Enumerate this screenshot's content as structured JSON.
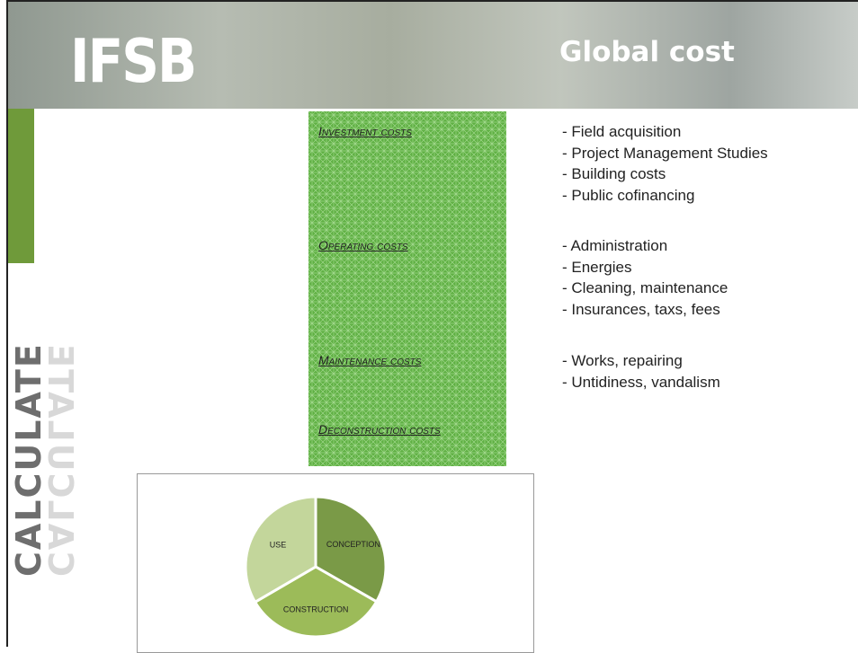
{
  "header": {
    "logo": "IFSB",
    "title": "Global cost"
  },
  "side_label": "CALCULATE",
  "costs": [
    {
      "label": "Investment costs",
      "items": [
        "- Field acquisition",
        "- Project Management Studies",
        "- Building costs",
        "- Public cofinancing"
      ]
    },
    {
      "label": "Operating costs",
      "items": [
        "- Administration",
        "- Energies",
        "- Cleaning, maintenance",
        "- Insurances, taxs, fees"
      ]
    },
    {
      "label": "Maintenance costs",
      "items": [
        "- Works, repairing",
        "- Untidiness, vandalism"
      ]
    },
    {
      "label": "Deconstruction costs",
      "items": []
    }
  ],
  "chart_data": {
    "type": "pie",
    "categories": [
      "CONCEPTION",
      "CONSTRUCTION",
      "USE"
    ],
    "values": [
      33.3,
      33.3,
      33.4
    ],
    "colors": [
      "#7a9a47",
      "#9cbb59",
      "#c3d69b"
    ]
  }
}
